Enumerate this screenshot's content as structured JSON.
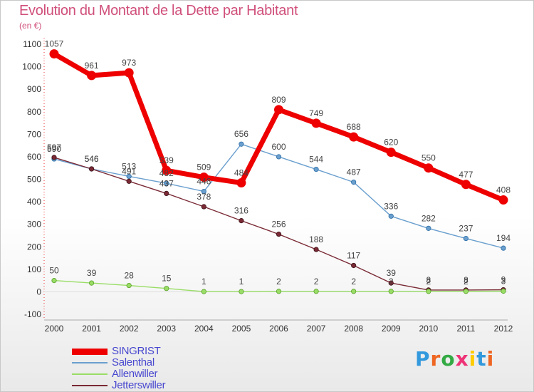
{
  "chart_data": {
    "type": "line",
    "title": "Evolution du Montant de la Dette par Habitant",
    "unit_label": "(en €)",
    "x": [
      "2000",
      "2001",
      "2002",
      "2003",
      "2004",
      "2005",
      "2006",
      "2007",
      "2008",
      "2009",
      "2010",
      "2011",
      "2012"
    ],
    "ylim": [
      -100,
      1100
    ],
    "yticks": [
      "-100",
      "0",
      "100",
      "200",
      "300",
      "400",
      "500",
      "600",
      "700",
      "800",
      "900",
      "1000",
      "1100"
    ],
    "grid": false,
    "legend_position": "bottom-left",
    "series": [
      {
        "name": "SINGRIST",
        "color": "#ee0000",
        "values": [
          1057,
          961,
          973,
          539,
          509,
          484,
          809,
          749,
          688,
          620,
          550,
          477,
          408
        ],
        "labels": [
          "1057",
          "961",
          "973",
          "539",
          "509",
          "484",
          "809",
          "749",
          "688",
          "620",
          "550",
          "477",
          "408"
        ]
      },
      {
        "name": "Salenthal",
        "color": "#6a9fce",
        "values": [
          590,
          546,
          513,
          482,
          446,
          656,
          600,
          544,
          487,
          336,
          282,
          237,
          194
        ],
        "labels": [
          "590",
          "546",
          "513",
          "482",
          "446",
          "656",
          "600",
          "544",
          "487",
          "336",
          "282",
          "237",
          "194"
        ]
      },
      {
        "name": "Allenwiller",
        "color": "#99dd66",
        "values": [
          50,
          39,
          28,
          15,
          1,
          1,
          2,
          2,
          2,
          2,
          2,
          2,
          3
        ],
        "labels": [
          "50",
          "39",
          "28",
          "15",
          "1",
          "1",
          "2",
          "2",
          "2",
          "2",
          "2",
          "2",
          "3"
        ]
      },
      {
        "name": "Jetterswiller",
        "color": "#7a2a35",
        "values": [
          597,
          546,
          491,
          437,
          378,
          316,
          256,
          188,
          117,
          39,
          8,
          8,
          9
        ],
        "labels": [
          "597",
          "546",
          "491",
          "437",
          "378",
          "316",
          "256",
          "188",
          "117",
          "39",
          "8",
          "8",
          "9"
        ]
      }
    ]
  },
  "brand": {
    "text": "Proxiti",
    "letter_colors": [
      "#3399dd",
      "#ee6622",
      "#33aa44",
      "#ee3377",
      "#ffcc00",
      "#3399dd",
      "#ee6622"
    ]
  }
}
